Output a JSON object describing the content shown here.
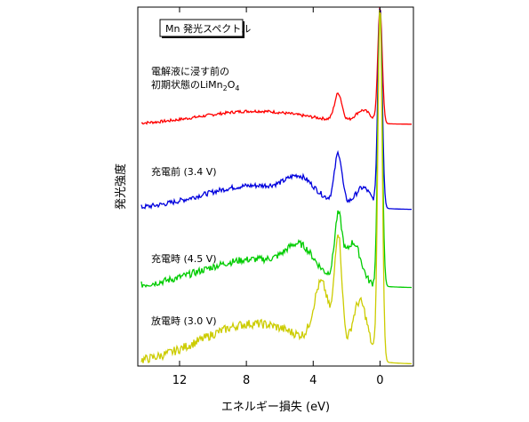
{
  "chart_data": {
    "type": "line",
    "title": "Mn 発光スペクトル",
    "xlabel": "エネルギー損失 (eV)",
    "ylabel": "発光強度",
    "xlim": [
      14.5,
      -2.0
    ],
    "x_reversed": true,
    "xticks": [
      12,
      8,
      4,
      0
    ],
    "xtick_labels": [
      "12",
      "8",
      "4",
      "0"
    ],
    "grid": false,
    "series": [
      {
        "name": "電解液に浸す前の初期状態のLiMn2O4",
        "label_lines": [
          "電解液に浸す前の",
          "初期状態のLiMn",
          "2",
          "O",
          "4"
        ],
        "color": "#ff0000",
        "peaks": [
          {
            "x": 7.5,
            "height": 0.35
          },
          {
            "x": 2.5,
            "height": 0.72
          },
          {
            "x": 1.0,
            "height": 0.33
          },
          {
            "x": 0.0,
            "height": 1.0
          }
        ]
      },
      {
        "name": "充電前 (3.4 V)",
        "color": "#0000dd",
        "peaks": [
          {
            "x": 7.5,
            "height": 0.38
          },
          {
            "x": 4.8,
            "height": 0.27
          },
          {
            "x": 2.5,
            "height": 0.78
          },
          {
            "x": 1.0,
            "height": 0.3
          },
          {
            "x": 0.0,
            "height": 1.0
          }
        ]
      },
      {
        "name": "充電時 (4.5 V)",
        "color": "#00cc00",
        "peaks": [
          {
            "x": 7.5,
            "height": 0.32
          },
          {
            "x": 4.8,
            "height": 0.27
          },
          {
            "x": 2.5,
            "height": 0.68
          },
          {
            "x": 1.6,
            "height": 0.45
          },
          {
            "x": 0.0,
            "height": 1.0
          }
        ]
      },
      {
        "name": "放電時 (3.0 V)",
        "color": "#cccc00",
        "peaks": [
          {
            "x": 7.5,
            "height": 0.32
          },
          {
            "x": 3.5,
            "height": 0.5
          },
          {
            "x": 2.5,
            "height": 0.9
          },
          {
            "x": 1.2,
            "height": 0.45
          },
          {
            "x": 0.0,
            "height": 1.0
          }
        ]
      }
    ]
  }
}
